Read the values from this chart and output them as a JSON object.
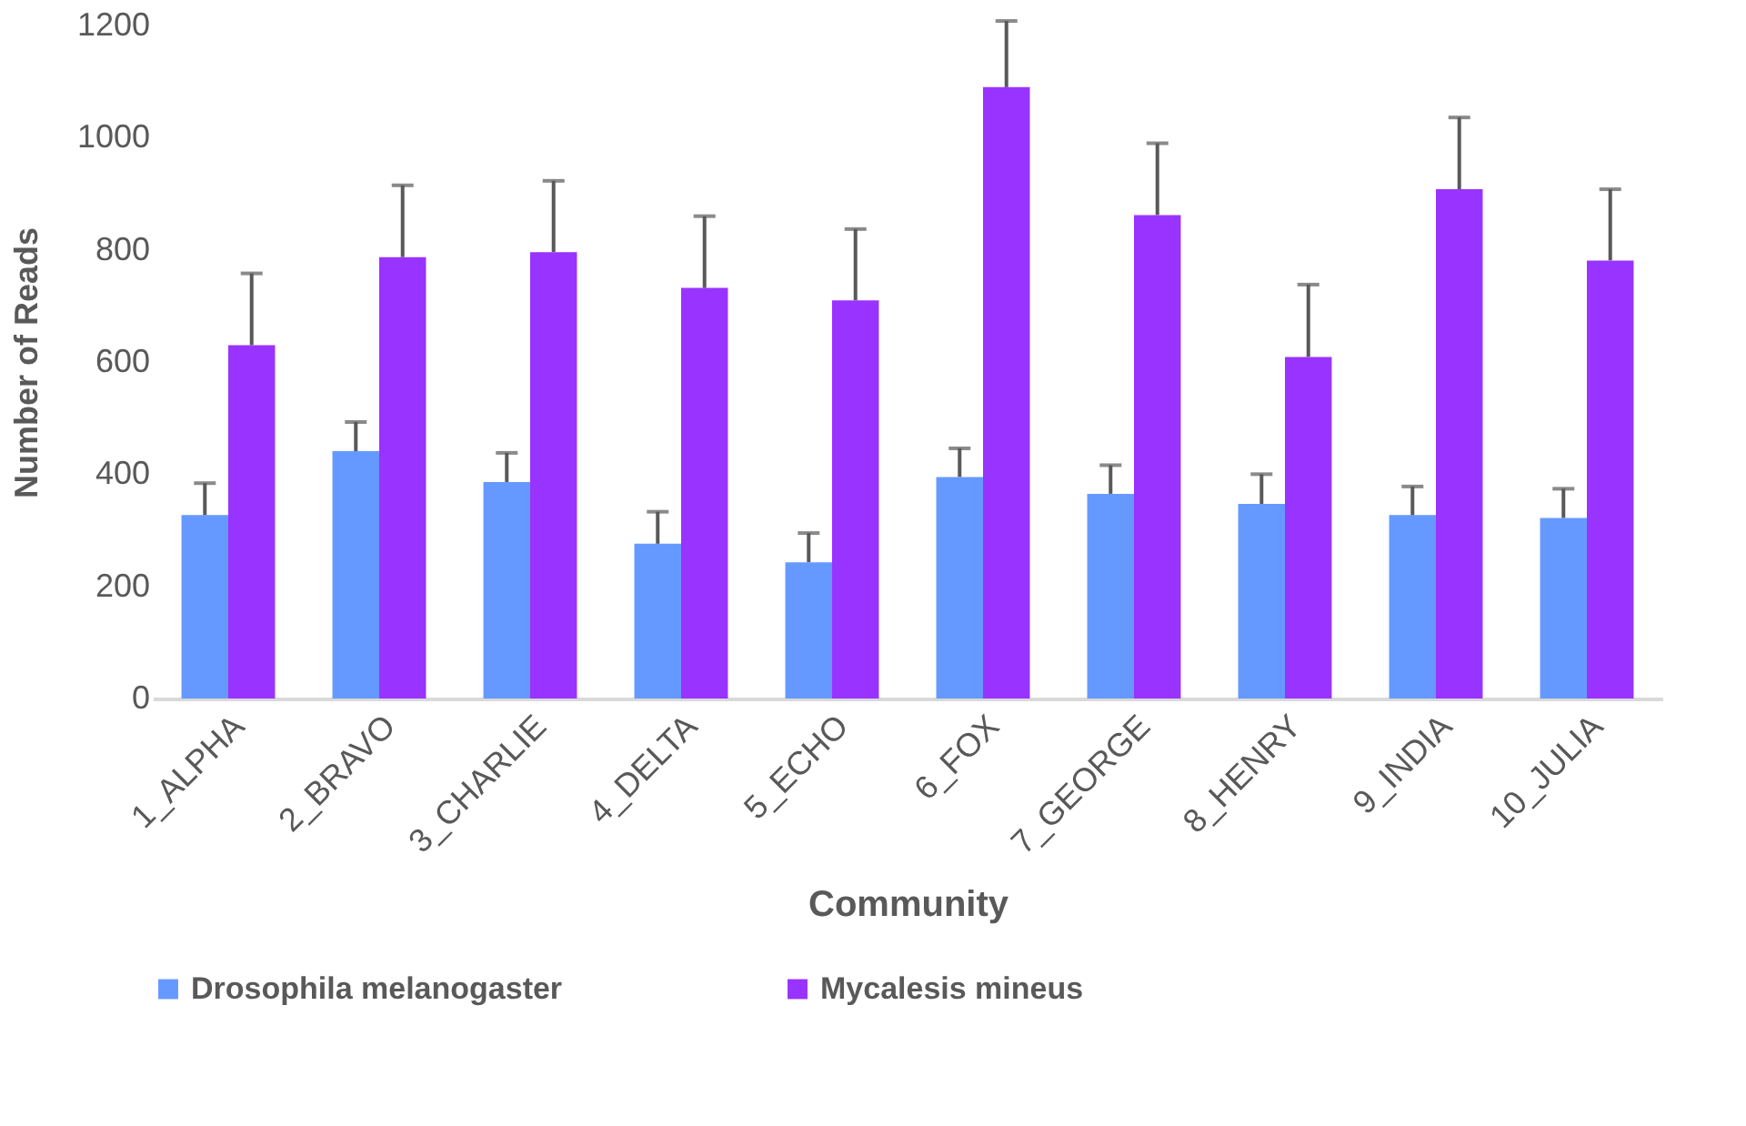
{
  "chart_data": {
    "type": "bar",
    "xlabel": "Community",
    "ylabel": "Number of Reads",
    "categories": [
      "1_ALPHA",
      "2_BRAVO",
      "3_CHARLIE",
      "4_DELTA",
      "5_ECHO",
      "6_FOX",
      "7_GEORGE",
      "8_HENRY",
      "9_INDIA",
      "10_JULIA"
    ],
    "series": [
      {
        "name": "Drosophila melanogaster",
        "color": "#6699ff",
        "values": [
          327,
          441,
          386,
          276,
          243,
          395,
          365,
          347,
          327,
          322
        ],
        "errors": [
          [
            327,
            384
          ],
          [
            441,
            493
          ],
          [
            386,
            438
          ],
          [
            276,
            333
          ],
          [
            243,
            295
          ],
          [
            395,
            446
          ],
          [
            365,
            416
          ],
          [
            347,
            400
          ],
          [
            327,
            378
          ],
          [
            322,
            374
          ]
        ]
      },
      {
        "name": "Mycalesis mineus",
        "color": "#9933ff",
        "values": [
          630,
          787,
          796,
          732,
          710,
          1090,
          862,
          609,
          908,
          781
        ],
        "errors": [
          [
            630,
            758
          ],
          [
            787,
            915
          ],
          [
            796,
            923
          ],
          [
            732,
            860
          ],
          [
            710,
            837
          ],
          [
            1090,
            1208
          ],
          [
            862,
            990
          ],
          [
            609,
            738
          ],
          [
            908,
            1036
          ],
          [
            781,
            908
          ]
        ]
      }
    ],
    "ylim": [
      0,
      1200
    ],
    "yticks": [
      0,
      200,
      400,
      600,
      800,
      1000,
      1200
    ],
    "grid": false,
    "legend": "bottom"
  }
}
